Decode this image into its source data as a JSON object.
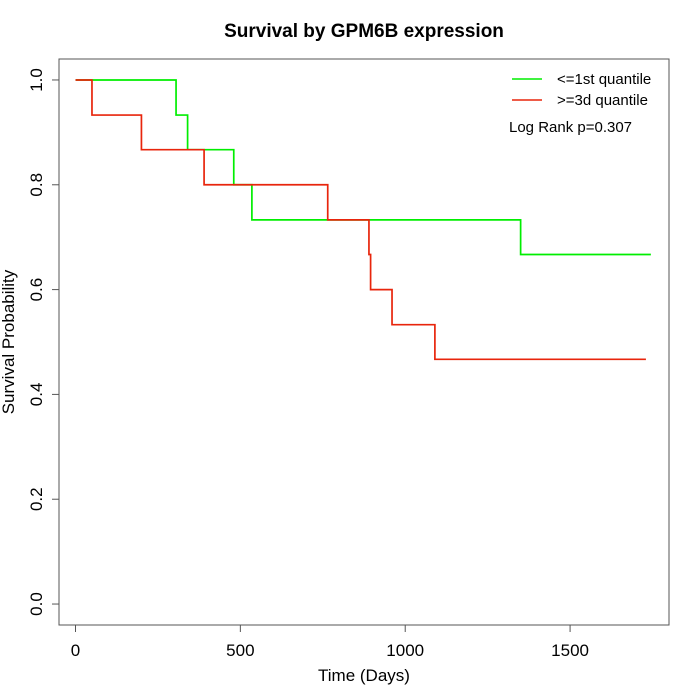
{
  "chart_data": {
    "type": "line",
    "title": "Survival by GPM6B expression",
    "xlabel": "Time (Days)",
    "ylabel": "Survival Probability",
    "xlim": [
      -50,
      1800
    ],
    "ylim": [
      -0.04,
      1.04
    ],
    "xticks": [
      0,
      500,
      1000,
      1500
    ],
    "yticks": [
      0.0,
      0.2,
      0.4,
      0.6,
      0.8,
      1.0
    ],
    "xtick_labels": [
      "0",
      "500",
      "1000",
      "1500"
    ],
    "ytick_labels": [
      "0.0",
      "0.2",
      "0.4",
      "0.6",
      "0.8",
      "1.0"
    ],
    "grid": false,
    "legend_position": "top-right",
    "annotation": "Log Rank p=0.307",
    "series": [
      {
        "name": "<=1st quantile",
        "color": "#00ee00",
        "step": true,
        "x": [
          0,
          305,
          340,
          480,
          535,
          1350,
          1745
        ],
        "y": [
          1.0,
          0.933,
          0.867,
          0.8,
          0.733,
          0.667,
          0.667
        ]
      },
      {
        "name": ">=3d quantile",
        "color": "#e8250c",
        "step": true,
        "x": [
          0,
          50,
          200,
          390,
          765,
          890,
          895,
          960,
          1090,
          1730
        ],
        "y": [
          1.0,
          0.933,
          0.867,
          0.8,
          0.733,
          0.667,
          0.6,
          0.533,
          0.467,
          0.467
        ]
      }
    ]
  }
}
